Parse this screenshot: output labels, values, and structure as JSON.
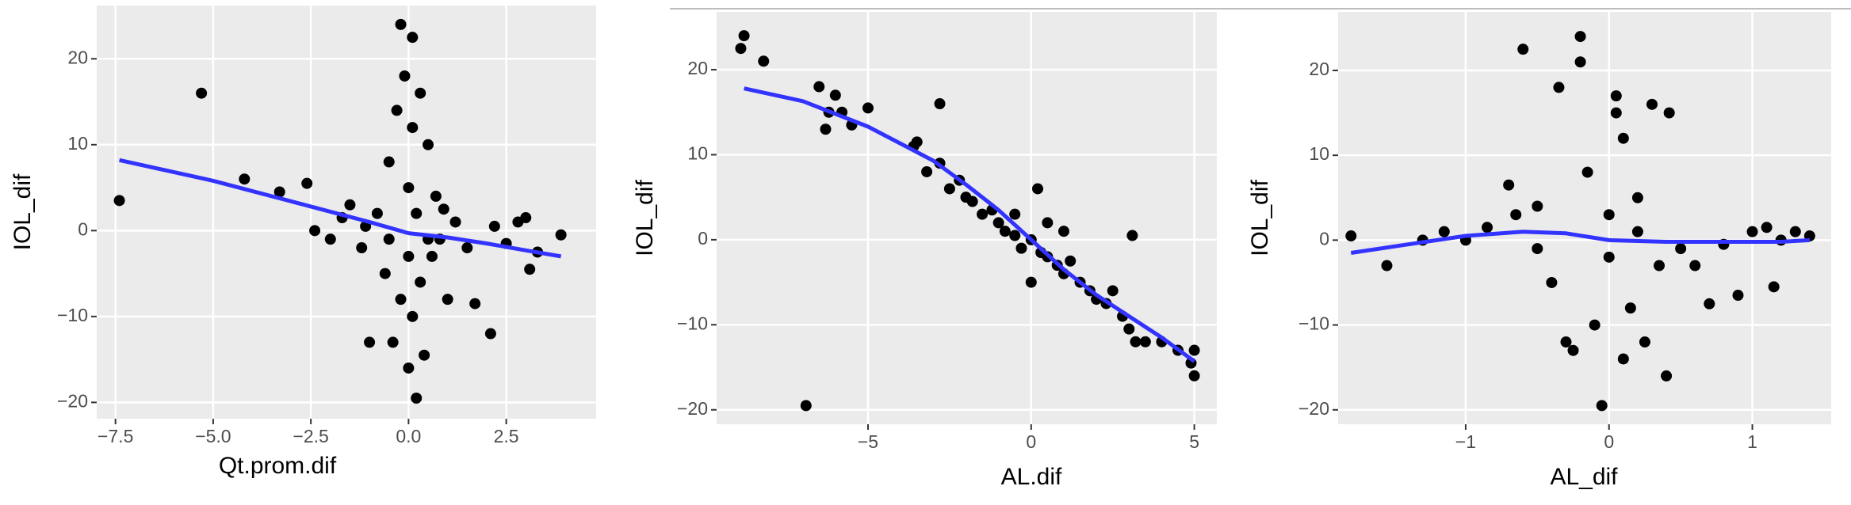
{
  "chart_data": [
    {
      "type": "scatter",
      "x_label": "Qt.prom.dif",
      "y_label": "IOL_dif",
      "xlim": [
        -7.98,
        4.8
      ],
      "ylim": [
        -21.9,
        26.2
      ],
      "xticks": [
        {
          "value": -7.5,
          "label": "−7.5"
        },
        {
          "value": -5,
          "label": "−5.0"
        },
        {
          "value": -2.5,
          "label": "−2.5"
        },
        {
          "value": 0,
          "label": "0.0"
        },
        2.5
      ],
      "yticks": [
        {
          "value": -20,
          "label": "−20"
        },
        {
          "value": -10,
          "label": "−10"
        },
        0,
        10,
        20
      ],
      "grid": true,
      "points": {
        "color": "#000000",
        "x": [
          -7.4,
          -5.3,
          -4.2,
          -3.3,
          -2.6,
          -2.4,
          -2.0,
          -1.7,
          -1.5,
          -1.2,
          -1.0,
          -0.8,
          -0.6,
          -0.5,
          -0.4,
          -0.3,
          -0.2,
          -0.2,
          -0.1,
          0,
          0,
          0,
          0.1,
          0.1,
          0.1,
          0.2,
          0.2,
          0.3,
          0.3,
          0.4,
          0.5,
          0.6,
          0.7,
          0.8,
          1.0,
          1.2,
          1.5,
          1.7,
          2.1,
          2.2,
          2.5,
          2.8,
          3.0,
          3.1,
          3.3,
          3.9,
          -0.5,
          0.5,
          -1.1,
          0.9
        ],
        "y": [
          3.5,
          16,
          6,
          4.5,
          5.5,
          0,
          -1,
          1.5,
          3,
          -2,
          -13,
          2,
          -5,
          8,
          -13,
          14,
          -8,
          24,
          18,
          -3,
          5,
          -16,
          22.5,
          12,
          -10,
          -19.5,
          2,
          -6,
          16,
          -14.5,
          10,
          -3,
          4,
          -1,
          -8,
          1,
          -2,
          -8.5,
          -12,
          0.5,
          -1.5,
          1,
          1.5,
          -4.5,
          -2.5,
          -0.5,
          -1,
          -1,
          0.5,
          2.5
        ]
      },
      "smooth": {
        "color": "#3333ff",
        "x": [
          -7.4,
          -5,
          -2.5,
          -1,
          0,
          1,
          2,
          3,
          3.9
        ],
        "y": [
          8.2,
          5.8,
          2.8,
          1,
          -0.3,
          -0.8,
          -1.5,
          -2.3,
          -3
        ]
      }
    },
    {
      "type": "scatter",
      "x_label": "AL.dif",
      "y_label": "IOL_dif",
      "xlim": [
        -9.64,
        5.69
      ],
      "ylim": [
        -21.7,
        26.8
      ],
      "xticks": [
        {
          "value": -5,
          "label": "−5"
        },
        0,
        5
      ],
      "yticks": [
        {
          "value": -20,
          "label": "−20"
        },
        {
          "value": -10,
          "label": "−10"
        },
        0,
        10,
        20
      ],
      "grid": true,
      "points": {
        "color": "#000000",
        "x": [
          -8.9,
          -8.8,
          -8.2,
          -6.9,
          -6.5,
          -6.3,
          -6.2,
          -6.0,
          -5.8,
          -5.5,
          -5.0,
          -3.6,
          -3.5,
          -3.2,
          -2.8,
          -2.8,
          -2.5,
          -2.2,
          -2,
          -1.8,
          -1.5,
          -1.2,
          -1,
          -0.8,
          -0.5,
          -0.3,
          0,
          0,
          0.2,
          0.3,
          0.5,
          0.8,
          1,
          1.2,
          1.5,
          1.8,
          2,
          2.3,
          2.5,
          2.8,
          3,
          3.1,
          3.2,
          3.5,
          4,
          4.5,
          4.9,
          5,
          5,
          -0.5,
          0.5,
          1
        ],
        "y": [
          22.5,
          24,
          21,
          -19.5,
          18,
          13,
          15,
          17,
          15,
          13.5,
          15.5,
          11,
          11.5,
          8,
          9,
          16,
          6,
          7,
          5,
          4.5,
          3,
          3.5,
          2,
          1,
          0.5,
          -1,
          0,
          -5,
          6,
          -1.5,
          -2,
          -3,
          -4,
          -2.5,
          -5,
          -6,
          -7,
          -7.5,
          -6,
          -9,
          -10.5,
          0.5,
          -12,
          -12,
          -12,
          -13,
          -14.5,
          -16,
          -13,
          3,
          2,
          1
        ]
      },
      "smooth": {
        "color": "#3333ff",
        "x": [
          -8.8,
          -7,
          -5,
          -3,
          -2,
          -1,
          0,
          1,
          2,
          3,
          4,
          5
        ],
        "y": [
          17.8,
          16.3,
          13.3,
          9.3,
          6.5,
          3.5,
          0,
          -3.5,
          -6.5,
          -9,
          -11.5,
          -14.3
        ]
      }
    },
    {
      "type": "scatter",
      "x_label": "AL_dif",
      "y_label": "IOL_dif",
      "xlim": [
        -1.89,
        1.55
      ],
      "ylim": [
        -21.7,
        26.9
      ],
      "xticks": [
        {
          "value": -1,
          "label": "−1"
        },
        0,
        1
      ],
      "yticks": [
        {
          "value": -20,
          "label": "−20"
        },
        {
          "value": -10,
          "label": "−10"
        },
        0,
        10,
        20
      ],
      "grid": true,
      "points": {
        "color": "#000000",
        "x": [
          -1.8,
          -1.55,
          -1.3,
          -1.15,
          -1.0,
          -0.85,
          -0.7,
          -0.65,
          -0.6,
          -0.5,
          -0.4,
          -0.35,
          -0.3,
          -0.2,
          -0.2,
          -0.25,
          -0.15,
          -0.1,
          -0.05,
          0,
          0,
          0.05,
          0.05,
          0.1,
          0.1,
          0.15,
          0.2,
          0.25,
          0.3,
          0.35,
          0.4,
          0.42,
          0.5,
          0.6,
          0.7,
          0.8,
          0.9,
          1.0,
          1.1,
          1.15,
          1.2,
          1.3,
          1.4,
          -0.5,
          0.2
        ],
        "y": [
          0.5,
          -3,
          0,
          1,
          0,
          1.5,
          6.5,
          3,
          22.5,
          4,
          -5,
          18,
          -12,
          24,
          21,
          -13,
          8,
          -10,
          -19.5,
          3,
          -2,
          15,
          17,
          -14,
          12,
          -8,
          5,
          -12,
          16,
          -3,
          -16,
          15,
          -1,
          -3,
          -7.5,
          -0.5,
          -6.5,
          1,
          1.5,
          -5.5,
          0,
          1,
          0.5,
          -1,
          1
        ]
      },
      "smooth": {
        "color": "#3333ff",
        "x": [
          -1.8,
          -1.4,
          -1,
          -0.6,
          -0.3,
          0,
          0.4,
          0.8,
          1.2,
          1.4
        ],
        "y": [
          -1.5,
          -0.5,
          0.5,
          1,
          0.8,
          0,
          -0.2,
          -0.2,
          -0.2,
          0
        ]
      }
    }
  ]
}
